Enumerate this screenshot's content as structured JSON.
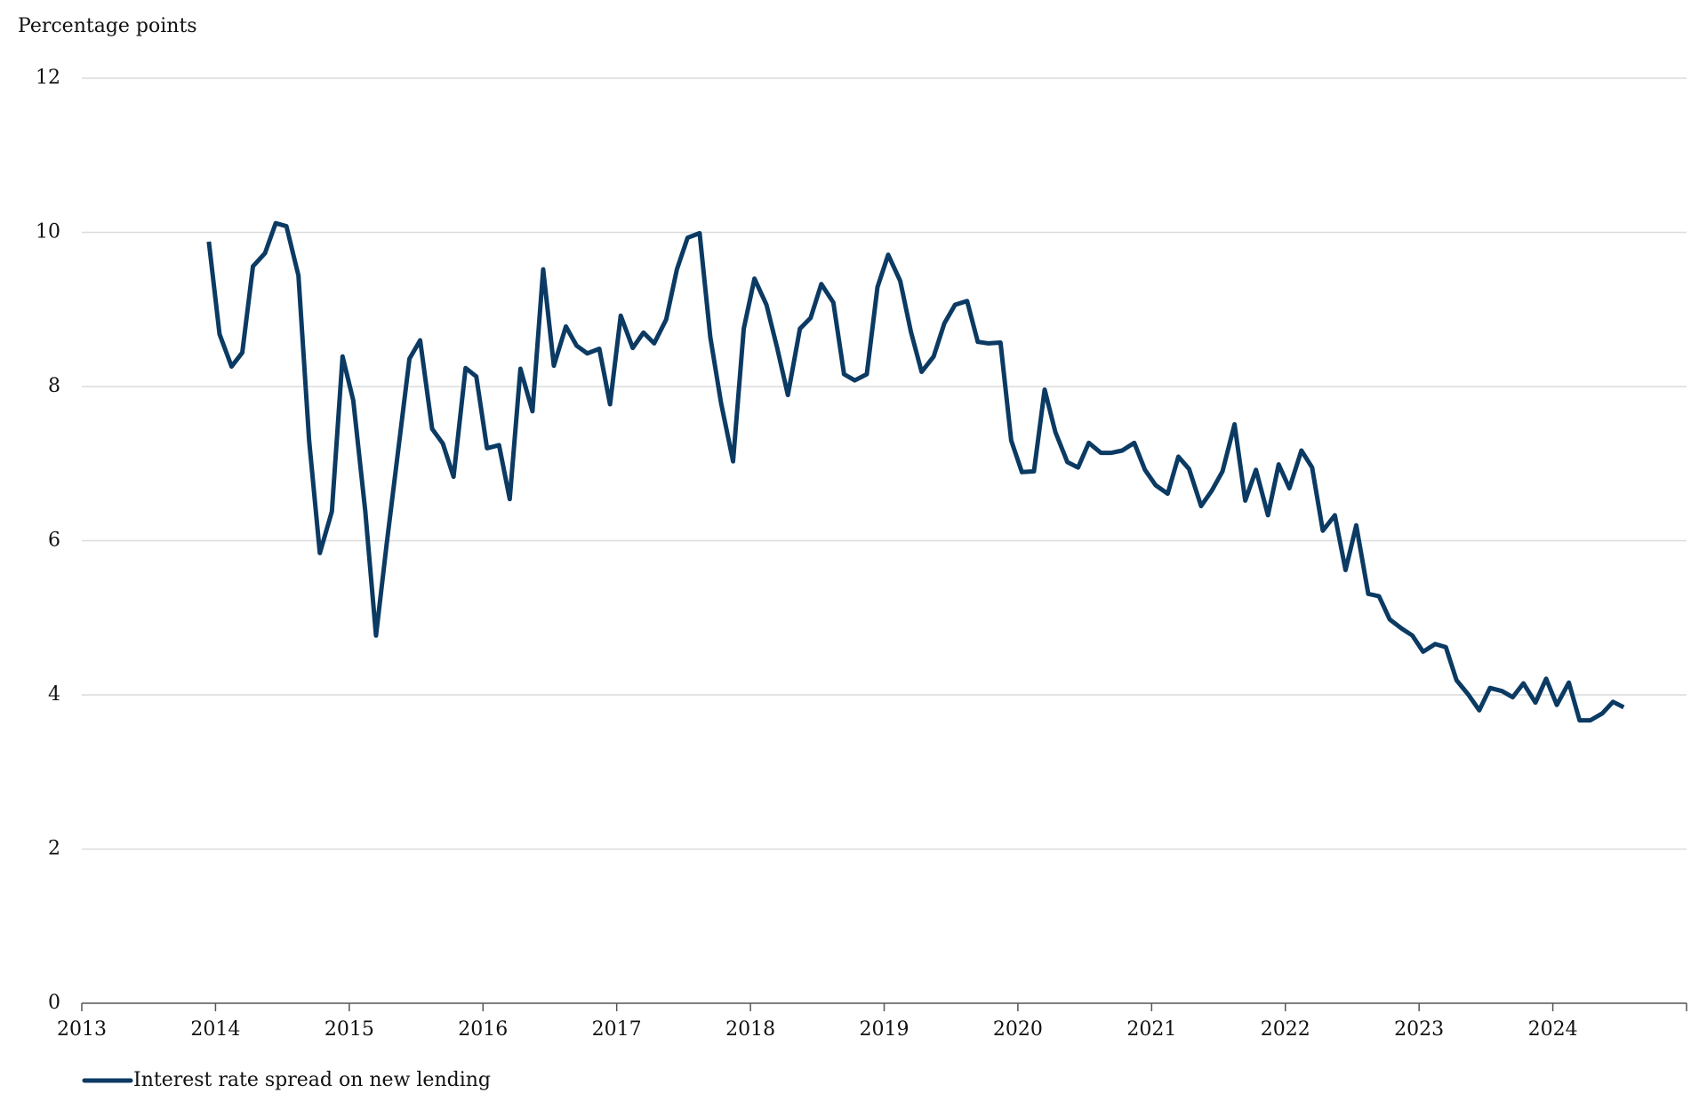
{
  "chart_data": {
    "type": "line",
    "y_axis_label": "Percentage points",
    "x": [
      2013.95,
      2014.03,
      2014.12,
      2014.2,
      2014.28,
      2014.37,
      2014.45,
      2014.53,
      2014.62,
      2014.7,
      2014.78,
      2014.87,
      2014.95,
      2015.03,
      2015.12,
      2015.2,
      2015.28,
      2015.37,
      2015.45,
      2015.53,
      2015.62,
      2015.7,
      2015.78,
      2015.87,
      2015.95,
      2016.03,
      2016.12,
      2016.2,
      2016.28,
      2016.37,
      2016.45,
      2016.53,
      2016.62,
      2016.7,
      2016.78,
      2016.87,
      2016.95,
      2017.03,
      2017.12,
      2017.2,
      2017.28,
      2017.37,
      2017.45,
      2017.53,
      2017.62,
      2017.7,
      2017.78,
      2017.87,
      2017.95,
      2018.03,
      2018.12,
      2018.2,
      2018.28,
      2018.37,
      2018.45,
      2018.53,
      2018.62,
      2018.7,
      2018.78,
      2018.87,
      2018.95,
      2019.03,
      2019.12,
      2019.2,
      2019.28,
      2019.37,
      2019.45,
      2019.53,
      2019.62,
      2019.7,
      2019.78,
      2019.87,
      2019.95,
      2020.03,
      2020.12,
      2020.2,
      2020.28,
      2020.37,
      2020.45,
      2020.53,
      2020.62,
      2020.7,
      2020.78,
      2020.87,
      2020.95,
      2021.03,
      2021.12,
      2021.2,
      2021.28,
      2021.37,
      2021.45,
      2021.53,
      2021.62,
      2021.7,
      2021.78,
      2021.87,
      2021.95,
      2022.03,
      2022.12,
      2022.2,
      2022.28,
      2022.37,
      2022.45,
      2022.53,
      2022.62,
      2022.7,
      2022.78,
      2022.87,
      2022.95,
      2023.03,
      2023.12,
      2023.2,
      2023.28,
      2023.37,
      2023.45,
      2023.53,
      2023.62,
      2023.7,
      2023.78,
      2023.87,
      2023.95,
      2024.03,
      2024.12,
      2024.2,
      2024.28,
      2024.37,
      2024.45,
      2024.53
    ],
    "series": [
      {
        "name": "Interest rate spread on new lending",
        "color": "#0b3a63",
        "values": [
          9.88,
          8.68,
          8.26,
          8.44,
          9.56,
          9.73,
          10.12,
          10.08,
          9.44,
          7.3,
          5.84,
          6.38,
          8.39,
          7.82,
          6.38,
          4.77,
          5.96,
          7.23,
          8.36,
          8.6,
          7.45,
          7.26,
          6.83,
          8.24,
          8.13,
          7.2,
          7.24,
          6.54,
          8.23,
          7.68,
          9.52,
          8.27,
          8.78,
          8.53,
          8.43,
          8.49,
          7.77,
          8.92,
          8.5,
          8.7,
          8.56,
          8.87,
          9.52,
          9.93,
          9.99,
          8.64,
          7.79,
          7.03,
          8.75,
          9.4,
          9.06,
          8.5,
          7.89,
          8.75,
          8.89,
          9.33,
          9.09,
          8.16,
          8.08,
          8.16,
          9.29,
          9.71,
          9.37,
          8.71,
          8.19,
          8.39,
          8.82,
          9.06,
          9.11,
          8.58,
          8.56,
          8.57,
          7.3,
          6.89,
          6.9,
          7.96,
          7.41,
          7.02,
          6.95,
          7.27,
          7.14,
          7.14,
          7.17,
          7.27,
          6.92,
          6.72,
          6.61,
          7.09,
          6.93,
          6.45,
          6.65,
          6.9,
          7.51,
          6.52,
          6.92,
          6.33,
          6.99,
          6.68,
          7.17,
          6.95,
          6.13,
          6.33,
          5.62,
          6.2,
          5.31,
          5.28,
          4.98,
          4.86,
          4.77,
          4.56,
          4.66,
          4.62,
          4.19,
          4.0,
          3.8,
          4.09,
          4.05,
          3.97,
          4.15,
          3.9,
          4.21,
          3.87,
          4.16,
          3.67,
          3.67,
          3.76,
          3.91,
          3.84
        ]
      }
    ],
    "xlim": [
      2013,
      2025
    ],
    "xticks": [
      2013,
      2014,
      2015,
      2016,
      2017,
      2018,
      2019,
      2020,
      2021,
      2022,
      2023,
      2024
    ],
    "ylim": [
      0,
      12
    ],
    "yticks": [
      0,
      2,
      4,
      6,
      8,
      10,
      12
    ],
    "grid": true,
    "legend": "bottom-left"
  }
}
